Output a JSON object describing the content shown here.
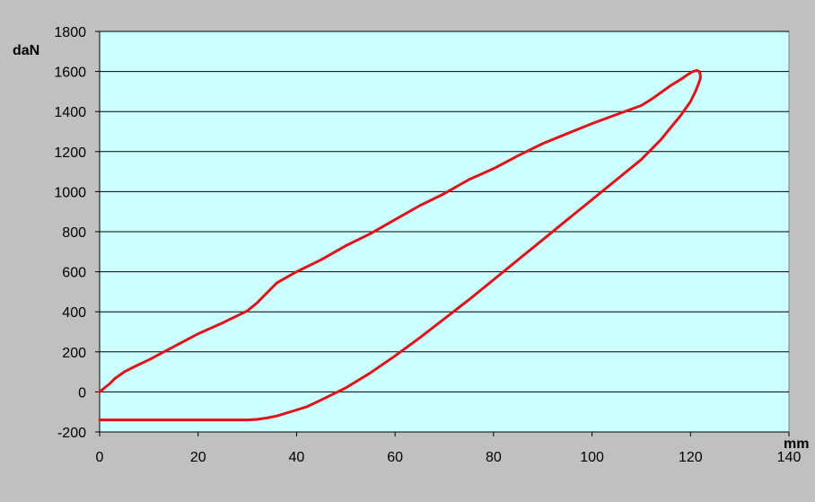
{
  "colors": {
    "background": "#c0c0c0",
    "plot_area": "#ccffff",
    "series": "#e0121a",
    "grid": "#000000"
  },
  "chart_data": {
    "type": "line",
    "title": "",
    "xlabel": "mm",
    "ylabel": "daN",
    "xlim": [
      0,
      140
    ],
    "ylim": [
      -200,
      1800
    ],
    "x_ticks": [
      0,
      20,
      40,
      60,
      80,
      100,
      120,
      140
    ],
    "y_ticks": [
      -200,
      0,
      200,
      400,
      600,
      800,
      1000,
      1200,
      1400,
      1600,
      1800
    ],
    "x_tick_labels": [
      "0",
      "20",
      "40",
      "60",
      "80",
      "100",
      "120",
      "140"
    ],
    "y_tick_labels": [
      "-200",
      "0",
      "200",
      "400",
      "600",
      "800",
      "1000",
      "1200",
      "1400",
      "1600",
      "1800"
    ],
    "grid": {
      "horizontal": true,
      "vertical": false
    },
    "legend": "none",
    "series": [
      {
        "x": [
          0,
          1,
          2,
          3,
          5,
          7,
          10,
          15,
          20,
          25,
          30,
          32,
          33,
          34,
          35,
          36,
          40,
          45,
          50,
          55,
          60,
          65,
          70,
          75,
          80,
          85,
          90,
          95,
          100,
          105,
          110,
          112,
          114,
          116,
          118,
          119.5,
          120.5,
          121.3,
          121.8,
          122,
          122,
          121.5,
          121,
          120,
          118,
          116,
          114,
          112,
          110,
          105,
          100,
          95,
          90,
          85,
          80,
          75,
          70,
          65,
          60,
          55,
          50,
          45,
          42,
          40,
          38,
          36,
          34,
          32,
          30,
          25,
          20,
          15,
          10,
          5,
          0
        ],
        "y": [
          0,
          20,
          40,
          65,
          100,
          125,
          160,
          225,
          290,
          345,
          405,
          445,
          470,
          495,
          520,
          545,
          600,
          660,
          730,
          790,
          860,
          930,
          990,
          1060,
          1115,
          1180,
          1240,
          1290,
          1340,
          1385,
          1430,
          1460,
          1495,
          1530,
          1560,
          1585,
          1600,
          1605,
          1600,
          1580,
          1565,
          1530,
          1500,
          1450,
          1380,
          1320,
          1260,
          1210,
          1160,
          1060,
          960,
          860,
          760,
          660,
          560,
          460,
          365,
          270,
          180,
          95,
          20,
          -40,
          -75,
          -90,
          -105,
          -120,
          -130,
          -137,
          -140,
          -140,
          -140,
          -140,
          -140,
          -140,
          -140
        ]
      }
    ]
  }
}
